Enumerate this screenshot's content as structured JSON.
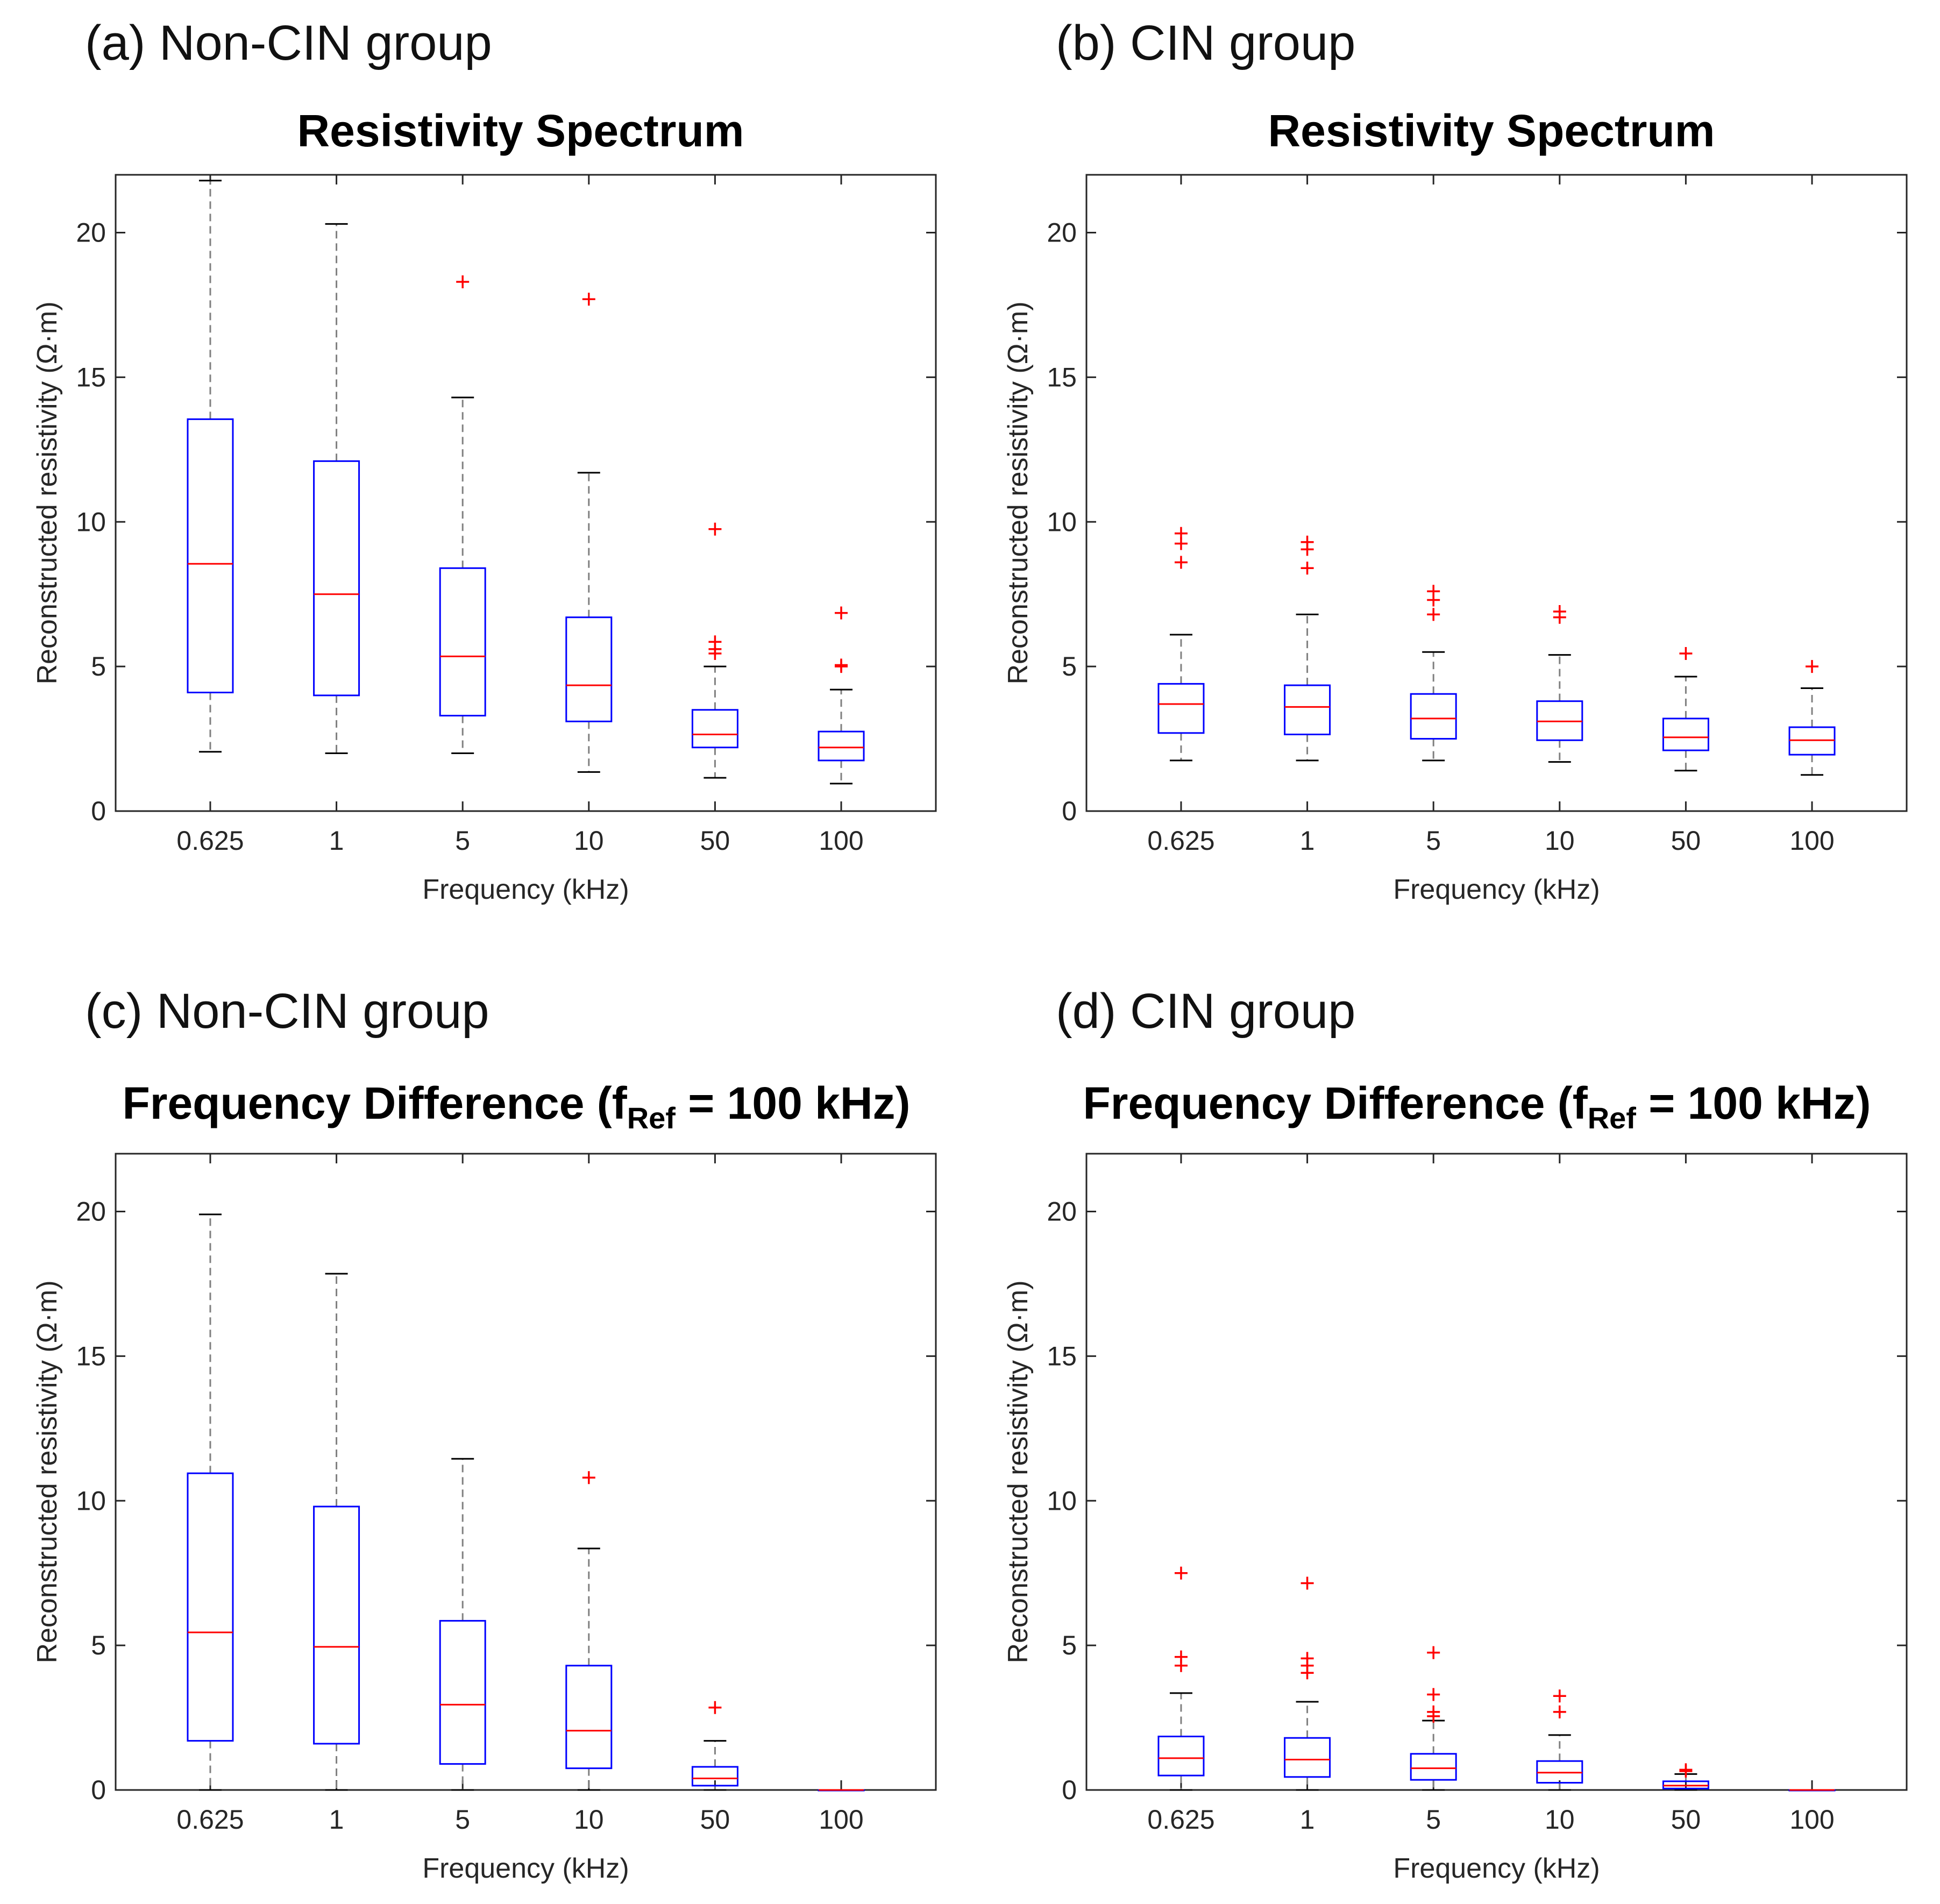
{
  "panels": [
    {
      "label": "(a) Non-CIN group",
      "title": "Resistivity Spectrum"
    },
    {
      "label": "(b) CIN group",
      "title": "Resistivity Spectrum"
    },
    {
      "label": "(c) Non-CIN group",
      "title_pre": "Frequency Difference (f",
      "title_sub": "Ref",
      "title_post": " = 100 kHz)"
    },
    {
      "label": "(d) CIN group",
      "title_pre": "Frequency Difference (f",
      "title_sub": "Ref",
      "title_post": " = 100 kHz)"
    }
  ],
  "colors": {
    "box": "#0000ff",
    "median": "#ff0000",
    "outlier": "#ff0000",
    "whisker": "#808080",
    "cap": "#000000",
    "axis": "#262626",
    "text": "#262626"
  },
  "chart_data": [
    {
      "type": "box",
      "title": "Resistivity Spectrum",
      "xlabel": "Frequency (kHz)",
      "ylabel": "Reconstructed resistivity (Ω·m)",
      "categories": [
        "0.625",
        "1",
        "5",
        "10",
        "50",
        "100"
      ],
      "ylim": [
        0,
        22
      ],
      "yticks": [
        0,
        5,
        10,
        15,
        20
      ],
      "boxes": [
        {
          "q1": 4.1,
          "median": 8.55,
          "q3": 13.55,
          "whislo": 2.05,
          "whishi": 21.8,
          "outliers": []
        },
        {
          "q1": 4.0,
          "median": 7.5,
          "q3": 12.1,
          "whislo": 2.0,
          "whishi": 20.3,
          "outliers": []
        },
        {
          "q1": 3.3,
          "median": 5.35,
          "q3": 8.4,
          "whislo": 2.0,
          "whishi": 14.3,
          "outliers": [
            18.3
          ]
        },
        {
          "q1": 3.1,
          "median": 4.35,
          "q3": 6.7,
          "whislo": 1.35,
          "whishi": 11.7,
          "outliers": [
            17.7
          ]
        },
        {
          "q1": 2.2,
          "median": 2.65,
          "q3": 3.5,
          "whislo": 1.15,
          "whishi": 5.0,
          "outliers": [
            5.45,
            5.6,
            5.85,
            9.75
          ]
        },
        {
          "q1": 1.75,
          "median": 2.2,
          "q3": 2.75,
          "whislo": 0.95,
          "whishi": 4.2,
          "outliers": [
            5.0,
            5.05,
            6.85
          ]
        }
      ]
    },
    {
      "type": "box",
      "title": "Resistivity Spectrum",
      "xlabel": "Frequency (kHz)",
      "ylabel": "Reconstructed resistivity (Ω·m)",
      "categories": [
        "0.625",
        "1",
        "5",
        "10",
        "50",
        "100"
      ],
      "ylim": [
        0,
        22
      ],
      "yticks": [
        0,
        5,
        10,
        15,
        20
      ],
      "boxes": [
        {
          "q1": 2.7,
          "median": 3.7,
          "q3": 4.4,
          "whislo": 1.75,
          "whishi": 6.1,
          "outliers": [
            8.6,
            9.25,
            9.6
          ]
        },
        {
          "q1": 2.65,
          "median": 3.6,
          "q3": 4.35,
          "whislo": 1.75,
          "whishi": 6.8,
          "outliers": [
            8.4,
            9.05,
            9.3
          ]
        },
        {
          "q1": 2.5,
          "median": 3.2,
          "q3": 4.05,
          "whislo": 1.75,
          "whishi": 5.5,
          "outliers": [
            6.8,
            7.3,
            7.6
          ]
        },
        {
          "q1": 2.45,
          "median": 3.1,
          "q3": 3.8,
          "whislo": 1.7,
          "whishi": 5.4,
          "outliers": [
            6.7,
            6.9
          ]
        },
        {
          "q1": 2.1,
          "median": 2.55,
          "q3": 3.2,
          "whislo": 1.4,
          "whishi": 4.65,
          "outliers": [
            5.45
          ]
        },
        {
          "q1": 1.95,
          "median": 2.45,
          "q3": 2.9,
          "whislo": 1.25,
          "whishi": 4.25,
          "outliers": [
            5.0
          ]
        }
      ]
    },
    {
      "type": "box",
      "title": "Frequency Difference (fRef = 100 kHz)",
      "xlabel": "Frequency (kHz)",
      "ylabel": "Reconstructed resistivity (Ω·m)",
      "categories": [
        "0.625",
        "1",
        "5",
        "10",
        "50",
        "100"
      ],
      "ylim": [
        0,
        22
      ],
      "yticks": [
        0,
        5,
        10,
        15,
        20
      ],
      "boxes": [
        {
          "q1": 1.7,
          "median": 5.45,
          "q3": 10.95,
          "whislo": 0.0,
          "whishi": 19.9,
          "outliers": []
        },
        {
          "q1": 1.6,
          "median": 4.95,
          "q3": 9.8,
          "whislo": 0.0,
          "whishi": 17.85,
          "outliers": []
        },
        {
          "q1": 0.9,
          "median": 2.95,
          "q3": 5.85,
          "whislo": 0.0,
          "whishi": 11.45,
          "outliers": []
        },
        {
          "q1": 0.75,
          "median": 2.05,
          "q3": 4.3,
          "whislo": 0.0,
          "whishi": 8.35,
          "outliers": [
            10.8
          ]
        },
        {
          "q1": 0.15,
          "median": 0.4,
          "q3": 0.8,
          "whislo": 0.0,
          "whishi": 1.7,
          "outliers": [
            2.85
          ]
        },
        {
          "q1": 0.0,
          "median": 0.0,
          "q3": 0.0,
          "whislo": 0.0,
          "whishi": 0.0,
          "outliers": []
        }
      ]
    },
    {
      "type": "box",
      "title": "Frequency Difference (fRef = 100 kHz)",
      "xlabel": "Frequency (kHz)",
      "ylabel": "Reconstructed resistivity (Ω·m)",
      "categories": [
        "0.625",
        "1",
        "5",
        "10",
        "50",
        "100"
      ],
      "ylim": [
        0,
        22
      ],
      "yticks": [
        0,
        5,
        10,
        15,
        20
      ],
      "boxes": [
        {
          "q1": 0.5,
          "median": 1.1,
          "q3": 1.85,
          "whislo": 0.0,
          "whishi": 3.35,
          "outliers": [
            4.3,
            4.6,
            7.5
          ]
        },
        {
          "q1": 0.45,
          "median": 1.05,
          "q3": 1.8,
          "whislo": 0.0,
          "whishi": 3.05,
          "outliers": [
            4.05,
            4.3,
            4.55,
            7.15
          ]
        },
        {
          "q1": 0.35,
          "median": 0.75,
          "q3": 1.25,
          "whislo": 0.0,
          "whishi": 2.4,
          "outliers": [
            2.55,
            2.7,
            3.3,
            4.75
          ]
        },
        {
          "q1": 0.25,
          "median": 0.6,
          "q3": 1.0,
          "whislo": 0.0,
          "whishi": 1.9,
          "outliers": [
            2.7,
            3.25
          ]
        },
        {
          "q1": 0.05,
          "median": 0.15,
          "q3": 0.3,
          "whislo": 0.0,
          "whishi": 0.55,
          "outliers": [
            0.65,
            0.7
          ]
        },
        {
          "q1": 0.0,
          "median": 0.0,
          "q3": 0.0,
          "whislo": 0.0,
          "whishi": 0.0,
          "outliers": []
        }
      ]
    }
  ]
}
